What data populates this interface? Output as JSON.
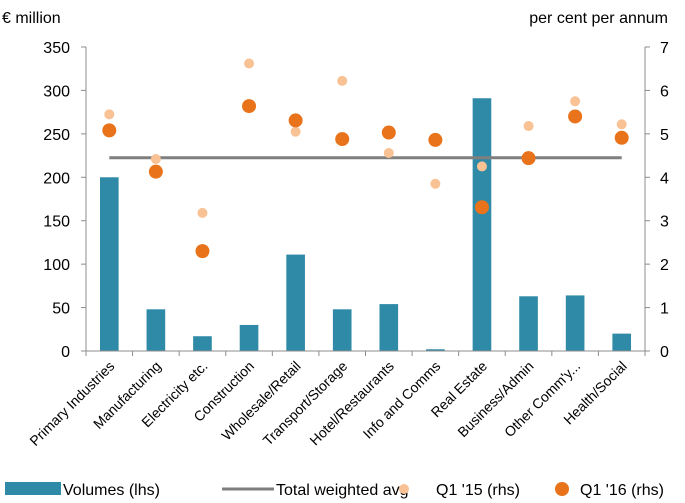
{
  "chart_data": {
    "type": "bar",
    "left_unit_label": "€ million",
    "right_unit_label": "per cent per annum",
    "categories": [
      "Primary Industries",
      "Manufacturing",
      "Electricity etc.",
      "Construction",
      "Wholesale/Retail",
      "Transport/Storage",
      "Hotel/Restaurants",
      "Info and Comms",
      "Real Estate",
      "Business/Admin",
      "Other Comm'y...",
      "Health/Social"
    ],
    "y_left": {
      "min": 0,
      "max": 350,
      "step": 50,
      "ticks": [
        "0",
        "50",
        "100",
        "150",
        "200",
        "250",
        "300",
        "350"
      ]
    },
    "y_right": {
      "min": 0,
      "max": 7,
      "step": 1,
      "ticks": [
        "0",
        "1",
        "2",
        "3",
        "4",
        "5",
        "6",
        "7"
      ]
    },
    "series": [
      {
        "name": "Volumes (lhs)",
        "kind": "bar",
        "axis": "left",
        "color": "#2e8aa6",
        "values": [
          200,
          48,
          17,
          30,
          111,
          48,
          54,
          2,
          291,
          63,
          64,
          20
        ]
      },
      {
        "name": "Total weighted avg",
        "kind": "line",
        "axis": "right",
        "color": "#7f7f7f",
        "values": [
          4.45,
          4.45,
          4.45,
          4.45,
          4.45,
          4.45,
          4.45,
          4.45,
          4.45,
          4.45,
          4.45,
          4.45
        ]
      },
      {
        "name": "Q1 '15 (rhs)",
        "kind": "dot",
        "axis": "right",
        "color": "#f9c295",
        "values": [
          5.45,
          4.42,
          3.18,
          6.62,
          5.05,
          6.22,
          4.56,
          3.85,
          4.25,
          5.18,
          5.75,
          5.22
        ]
      },
      {
        "name": "Q1 '16 (rhs)",
        "kind": "dot",
        "axis": "right",
        "color": "#e8731a",
        "values": [
          5.08,
          4.13,
          2.3,
          5.64,
          5.31,
          4.88,
          5.03,
          4.86,
          3.31,
          4.44,
          5.4,
          4.91
        ]
      }
    ],
    "grid": false,
    "legend_position": "bottom"
  }
}
